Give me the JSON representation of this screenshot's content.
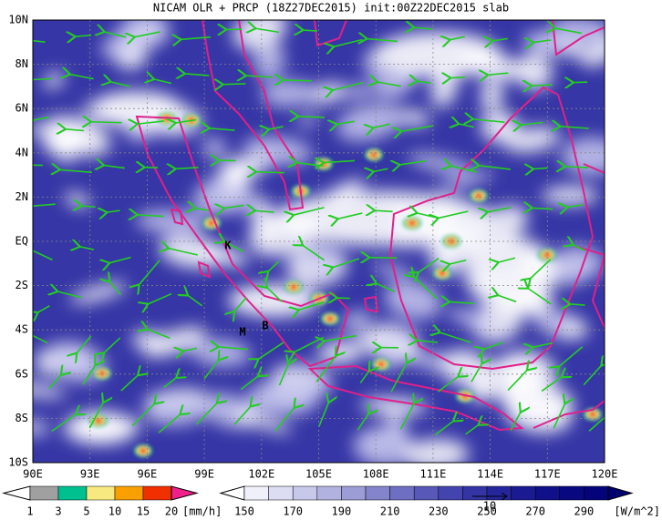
{
  "header": {
    "title": "NICAM OLR + PRCP (18Z27DEC2015) init:00Z22DEC2015 slab"
  },
  "map": {
    "lat_labels": [
      "10N",
      "8N",
      "6N",
      "4N",
      "2N",
      "EQ",
      "2S",
      "4S",
      "6S",
      "8S",
      "10S"
    ],
    "lon_labels": [
      "90E",
      "93E",
      "96E",
      "99E",
      "102E",
      "105E",
      "108E",
      "111E",
      "114E",
      "117E",
      "120E"
    ],
    "annotations": [
      "K",
      "M",
      "B"
    ]
  },
  "legend": {
    "precip": {
      "labels": [
        1,
        3,
        5,
        10,
        15,
        20
      ],
      "unit": "[mm/h]"
    },
    "olr": {
      "labels": [
        150,
        170,
        190,
        210,
        230,
        250,
        270,
        290
      ],
      "unit": "[W/m^2]"
    },
    "reference_arrow": "10"
  }
}
